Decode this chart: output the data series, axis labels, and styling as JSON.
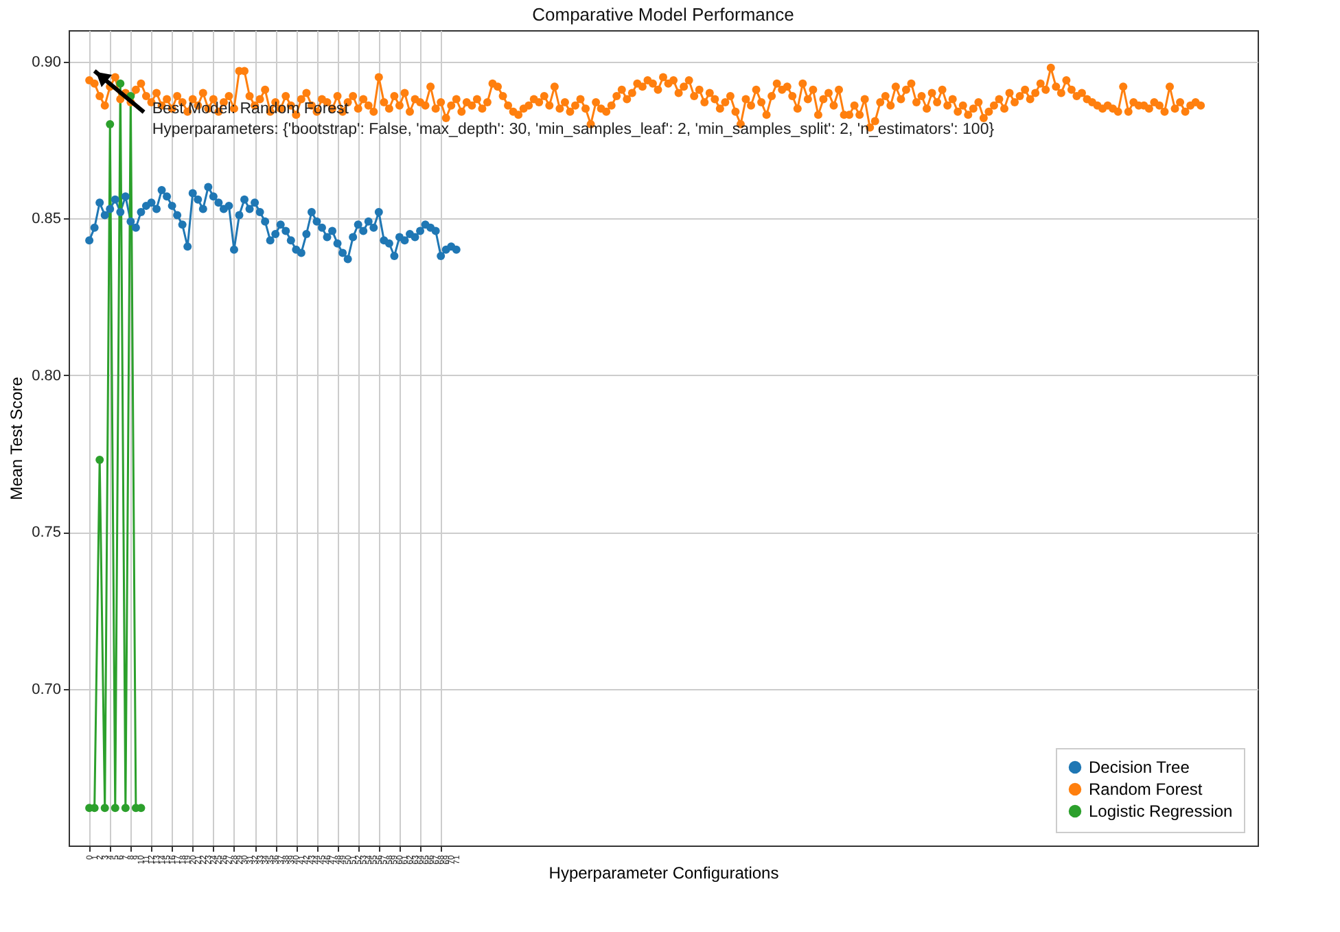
{
  "chart_data": {
    "type": "line",
    "title": "Comparative Model Performance",
    "xlabel": "Hyperparameter Configurations",
    "ylabel": "Mean Test Score",
    "x": [
      0,
      1,
      2,
      3,
      4,
      5,
      6,
      7,
      8,
      9,
      10,
      11,
      12,
      13,
      14,
      15,
      16,
      17,
      18,
      19,
      20,
      21,
      22,
      23,
      24,
      25,
      26,
      27,
      28,
      29,
      30,
      31,
      32,
      33,
      34,
      35,
      36,
      37,
      38,
      39,
      40,
      41,
      42,
      43,
      44,
      45,
      46,
      47,
      48,
      49,
      50,
      51,
      52,
      53,
      54,
      55,
      56,
      57,
      58,
      59,
      60,
      61,
      62,
      63,
      64,
      65,
      66,
      67,
      68,
      69,
      70,
      71,
      72,
      73,
      74,
      75,
      76,
      77,
      78,
      79,
      80,
      81,
      82,
      83,
      84,
      85,
      86,
      87,
      88,
      89,
      90,
      91,
      92,
      93,
      94,
      95,
      96,
      97,
      98,
      99,
      100,
      101,
      102,
      103,
      104,
      105,
      106,
      107,
      108,
      109,
      110,
      111,
      112,
      113,
      114,
      115,
      116,
      117,
      118,
      119,
      120,
      121,
      122,
      123,
      124,
      125,
      126,
      127,
      128,
      129,
      130,
      131,
      132,
      133,
      134,
      135,
      136,
      137,
      138,
      139,
      140,
      141,
      142,
      143,
      144,
      145,
      146,
      147,
      148,
      149,
      150,
      151,
      152,
      153,
      154,
      155,
      156,
      157,
      158,
      159,
      160,
      161,
      162,
      163,
      164,
      165,
      166,
      167,
      168,
      169,
      170,
      171,
      172,
      173,
      174,
      175,
      176,
      177,
      178,
      179,
      180,
      181,
      182,
      183,
      184,
      185,
      186,
      187,
      188,
      189,
      190,
      191,
      192,
      193,
      194,
      195,
      196,
      197,
      198,
      199,
      200,
      201,
      202,
      203,
      204,
      205,
      206,
      207,
      208,
      209,
      210,
      211,
      212,
      213,
      214,
      215
    ],
    "series": [
      {
        "name": "Decision Tree",
        "color": "#1f77b4",
        "x": [
          0,
          1,
          2,
          3,
          4,
          5,
          6,
          7,
          8,
          9,
          10,
          11,
          12,
          13,
          14,
          15,
          16,
          17,
          18,
          19,
          20,
          21,
          22,
          23,
          24,
          25,
          26,
          27,
          28,
          29,
          30,
          31,
          32,
          33,
          34,
          35,
          36,
          37,
          38,
          39,
          40,
          41,
          42,
          43,
          44,
          45,
          46,
          47,
          48,
          49,
          50,
          51,
          52,
          53,
          54,
          55,
          56,
          57,
          58,
          59,
          60,
          61,
          62,
          63,
          64,
          65,
          66,
          67,
          68,
          69,
          70,
          71
        ],
        "values": [
          0.843,
          0.847,
          0.855,
          0.851,
          0.853,
          0.856,
          0.852,
          0.857,
          0.849,
          0.847,
          0.852,
          0.854,
          0.855,
          0.853,
          0.859,
          0.857,
          0.854,
          0.851,
          0.848,
          0.841,
          0.858,
          0.856,
          0.853,
          0.86,
          0.857,
          0.855,
          0.853,
          0.854,
          0.84,
          0.851,
          0.856,
          0.853,
          0.855,
          0.852,
          0.849,
          0.843,
          0.845,
          0.848,
          0.846,
          0.843,
          0.84,
          0.839,
          0.845,
          0.852,
          0.849,
          0.847,
          0.844,
          0.846,
          0.842,
          0.839,
          0.837,
          0.844,
          0.848,
          0.846,
          0.849,
          0.847,
          0.852,
          0.843,
          0.842,
          0.838,
          0.844,
          0.843,
          0.845,
          0.844,
          0.846,
          0.848,
          0.847,
          0.846,
          0.838,
          0.84,
          0.841,
          0.84
        ]
      },
      {
        "name": "Random Forest",
        "color": "#ff7f0e",
        "values": [
          0.894,
          0.893,
          0.889,
          0.886,
          0.892,
          0.895,
          0.888,
          0.89,
          0.887,
          0.891,
          0.893,
          0.889,
          0.887,
          0.89,
          0.886,
          0.888,
          0.885,
          0.889,
          0.887,
          0.884,
          0.888,
          0.886,
          0.89,
          0.885,
          0.888,
          0.884,
          0.887,
          0.889,
          0.885,
          0.897,
          0.897,
          0.889,
          0.886,
          0.888,
          0.891,
          0.884,
          0.887,
          0.885,
          0.889,
          0.886,
          0.883,
          0.888,
          0.89,
          0.886,
          0.884,
          0.888,
          0.887,
          0.885,
          0.889,
          0.884,
          0.887,
          0.889,
          0.885,
          0.888,
          0.886,
          0.884,
          0.895,
          0.887,
          0.885,
          0.889,
          0.886,
          0.89,
          0.884,
          0.888,
          0.887,
          0.886,
          0.892,
          0.885,
          0.887,
          0.882,
          0.886,
          0.888,
          0.884,
          0.887,
          0.886,
          0.888,
          0.885,
          0.887,
          0.893,
          0.892,
          0.889,
          0.886,
          0.884,
          0.883,
          0.885,
          0.886,
          0.888,
          0.887,
          0.889,
          0.886,
          0.892,
          0.885,
          0.887,
          0.884,
          0.886,
          0.888,
          0.885,
          0.88,
          0.887,
          0.885,
          0.884,
          0.886,
          0.889,
          0.891,
          0.888,
          0.89,
          0.893,
          0.892,
          0.894,
          0.893,
          0.891,
          0.895,
          0.893,
          0.894,
          0.89,
          0.892,
          0.894,
          0.889,
          0.891,
          0.887,
          0.89,
          0.888,
          0.885,
          0.887,
          0.889,
          0.884,
          0.88,
          0.888,
          0.886,
          0.891,
          0.887,
          0.883,
          0.889,
          0.893,
          0.891,
          0.892,
          0.889,
          0.885,
          0.893,
          0.888,
          0.891,
          0.883,
          0.888,
          0.89,
          0.886,
          0.891,
          0.883,
          0.883,
          0.886,
          0.883,
          0.888,
          0.879,
          0.881,
          0.887,
          0.889,
          0.886,
          0.892,
          0.888,
          0.891,
          0.893,
          0.887,
          0.889,
          0.885,
          0.89,
          0.887,
          0.891,
          0.886,
          0.888,
          0.884,
          0.886,
          0.883,
          0.885,
          0.887,
          0.882,
          0.884,
          0.886,
          0.888,
          0.885,
          0.89,
          0.887,
          0.889,
          0.891,
          0.888,
          0.89,
          0.893,
          0.891,
          0.898,
          0.892,
          0.89,
          0.894,
          0.891,
          0.889,
          0.89,
          0.888,
          0.887,
          0.886,
          0.885,
          0.886,
          0.885,
          0.884,
          0.892,
          0.884,
          0.887,
          0.886,
          0.886,
          0.885,
          0.887,
          0.886,
          0.884,
          0.892,
          0.885,
          0.887,
          0.884,
          0.886,
          0.887,
          0.886
        ]
      },
      {
        "name": "Logistic Regression",
        "color": "#2ca02c",
        "x": [
          0,
          1,
          2,
          3,
          4,
          5,
          6,
          7,
          8,
          9,
          10
        ],
        "values": [
          0.662,
          0.662,
          0.773,
          0.662,
          0.88,
          0.662,
          0.893,
          0.662,
          0.889,
          0.662,
          0.662
        ]
      }
    ],
    "xlim": [
      -4,
      226
    ],
    "xticks": [
      0,
      1,
      2,
      3,
      4,
      5,
      6,
      7,
      8,
      9,
      10,
      11,
      12,
      13,
      14,
      15,
      16,
      17,
      18,
      19,
      20,
      21,
      22,
      23,
      24,
      25,
      26,
      27,
      28,
      29,
      30,
      31,
      32,
      33,
      34,
      35,
      36,
      37,
      38,
      39,
      40,
      41,
      42,
      43,
      44,
      45,
      46,
      47,
      48,
      49,
      50,
      51,
      52,
      53,
      54,
      55,
      56,
      57,
      58,
      59,
      60,
      61,
      62,
      63,
      64,
      65,
      66,
      67,
      68,
      69,
      70,
      71
    ],
    "ylim": [
      0.65,
      0.91
    ],
    "yticks": [
      {
        "value": 0.7,
        "label": "0.70"
      },
      {
        "value": 0.75,
        "label": "0.75"
      },
      {
        "value": 0.8,
        "label": "0.80"
      },
      {
        "value": 0.85,
        "label": "0.85"
      },
      {
        "value": 0.9,
        "label": "0.90"
      }
    ],
    "annotations": [
      {
        "text": "Best Model: Random Forest\nHyperparameters: {'bootstrap': False, 'max_depth': 30, 'min_samples_leaf': 2, 'min_samples_split': 2, 'n_estimators': 100}",
        "x": 1,
        "y": 0.897
      }
    ],
    "grid": true,
    "legend": "bottom right",
    "marker": "circle",
    "line_style": "solid"
  }
}
